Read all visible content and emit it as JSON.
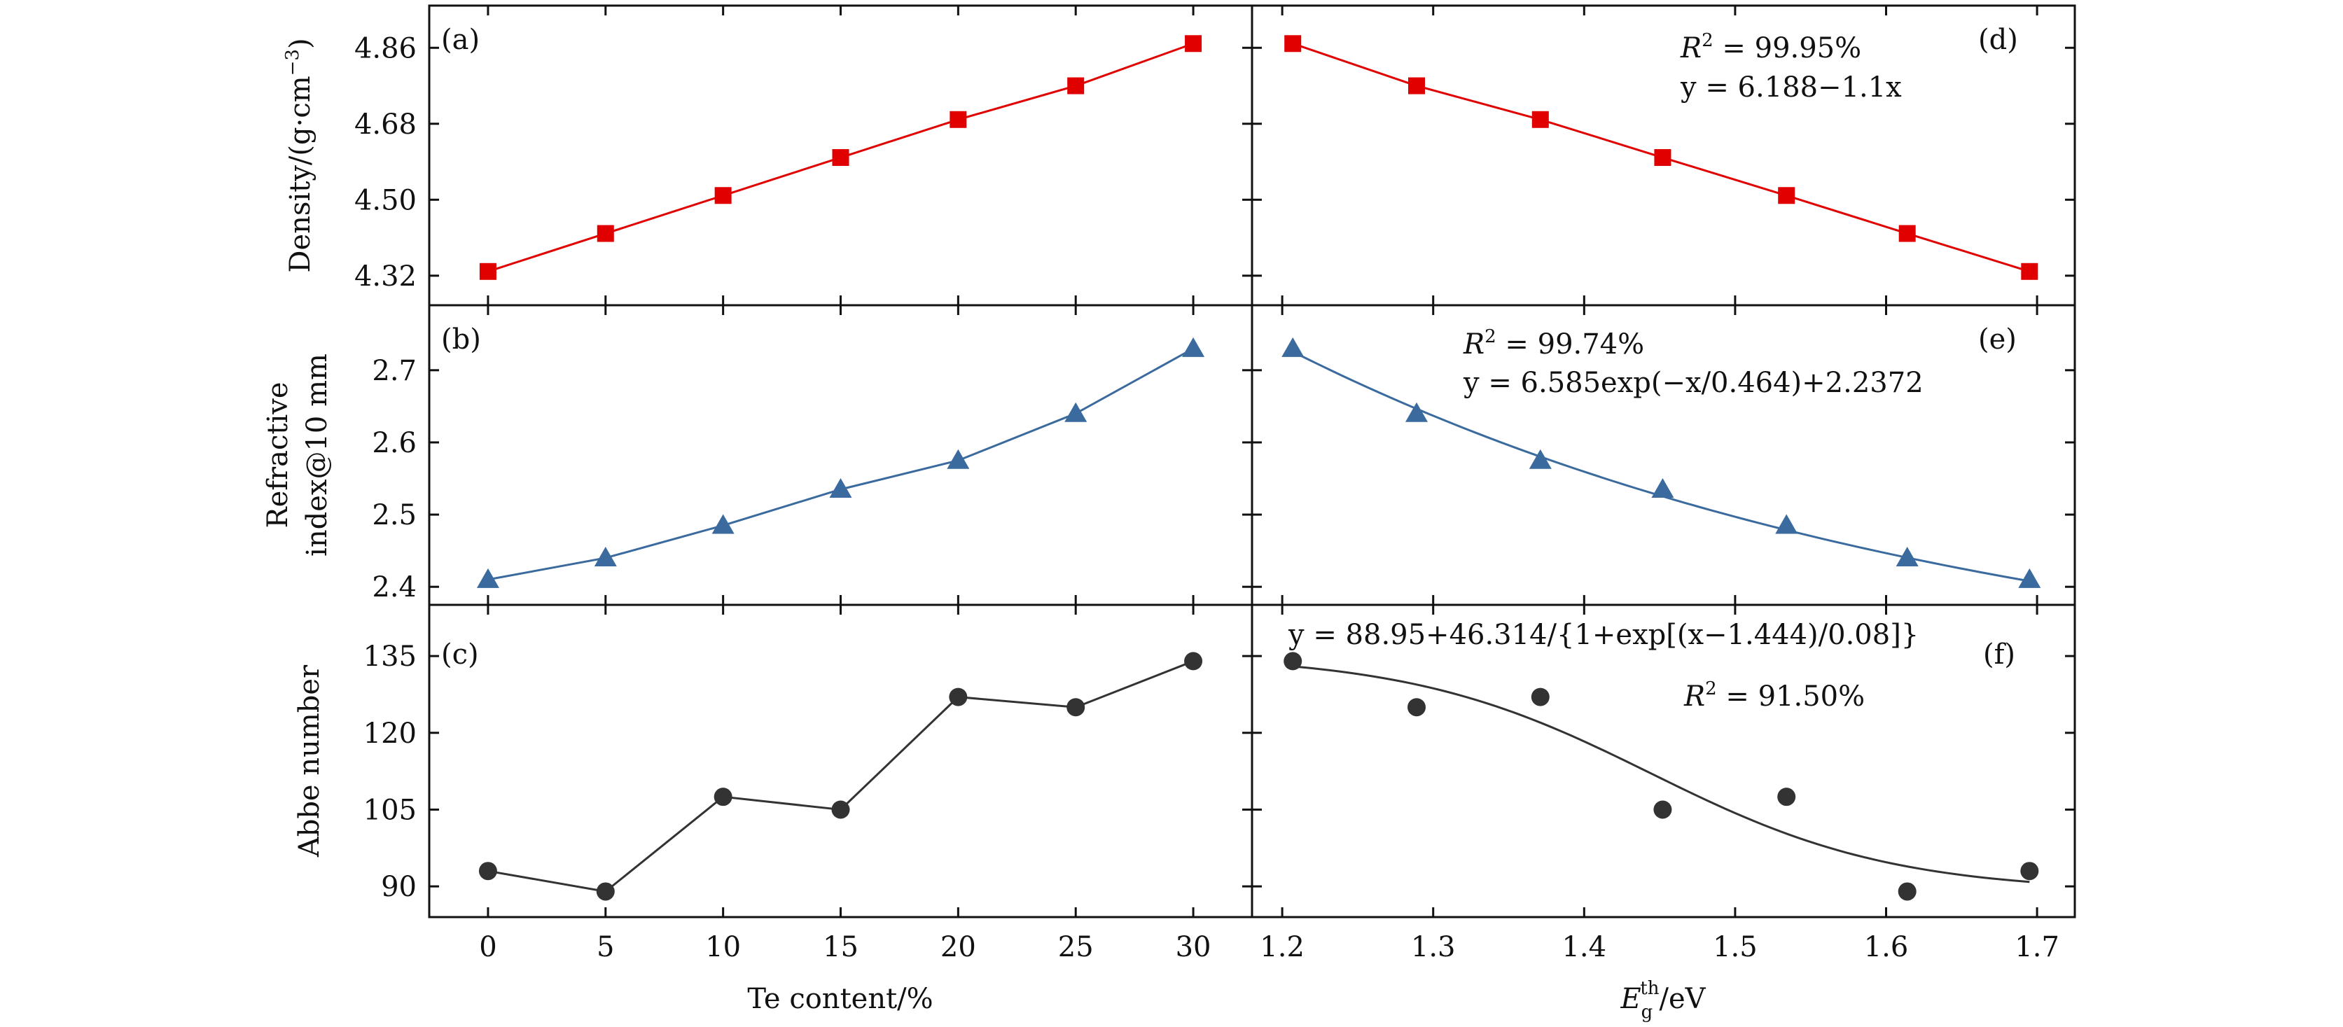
{
  "colors": {
    "red": "#e00000",
    "blue": "#3a6a9e",
    "dark": "#333333"
  },
  "x_te": {
    "ticks": [
      "0",
      "5",
      "10",
      "15",
      "20",
      "25",
      "30"
    ],
    "label": "Te content/%"
  },
  "x_eg": {
    "ticks": [
      "1.2",
      "1.3",
      "1.4",
      "1.5",
      "1.6",
      "1.7"
    ],
    "label_E": "E",
    "label_sub": "g",
    "label_sup": "th",
    "label_unit": "/eV"
  },
  "rows": [
    {
      "ylabel_lines": [
        "Density/(g·cm",
        "−3",
        ")"
      ],
      "ticks": [
        "4.32",
        "4.50",
        "4.68",
        "4.86"
      ]
    },
    {
      "ylabel_lines": [
        "Refractive",
        "index@10 mm"
      ],
      "ticks": [
        "2.4",
        "2.5",
        "2.6",
        "2.7"
      ]
    },
    {
      "ylabel_lines": [
        "Abbe number"
      ],
      "ticks": [
        "90",
        "105",
        "120",
        "135"
      ]
    }
  ],
  "panels": {
    "a": {
      "label": "(a)"
    },
    "b": {
      "label": "(b)"
    },
    "c": {
      "label": "(c)"
    },
    "d": {
      "label": "(d)",
      "r2": "R",
      "r2_sup": "2",
      "r2_val": " = 99.95%",
      "eq": "y = 6.188−1.1x"
    },
    "e": {
      "label": "(e)",
      "r2": "R",
      "r2_sup": "2",
      "r2_val": " = 99.74%",
      "eq": "y = 6.585exp(−x/0.464)+2.2372"
    },
    "f": {
      "label": "(f)",
      "r2": "R",
      "r2_sup": "2",
      "r2_val": " = 91.50%",
      "eq": "y = 88.95+46.314/{1+exp[(x−1.444)/0.08]}"
    }
  },
  "chart_data": [
    {
      "type": "line",
      "panel": "a",
      "marker": "square",
      "x": [
        0,
        5,
        10,
        15,
        20,
        25,
        30
      ],
      "y": [
        4.33,
        4.42,
        4.51,
        4.6,
        4.69,
        4.77,
        4.87
      ],
      "xlim": [
        -2.5,
        32.5
      ],
      "ylim": [
        4.25,
        4.96
      ],
      "ylabel": "Density/(g·cm−3)",
      "xlabel": "Te content/%"
    },
    {
      "type": "line",
      "panel": "b",
      "marker": "triangle",
      "x": [
        0,
        5,
        10,
        15,
        20,
        25,
        30
      ],
      "y": [
        2.41,
        2.44,
        2.485,
        2.535,
        2.575,
        2.64,
        2.73
      ],
      "xlim": [
        -2.5,
        32.5
      ],
      "ylim": [
        2.375,
        2.79
      ],
      "ylabel": "Refractive index@10 mm",
      "xlabel": "Te content/%"
    },
    {
      "type": "line",
      "panel": "c",
      "marker": "circle",
      "x": [
        0,
        5,
        10,
        15,
        20,
        25,
        30
      ],
      "y": [
        93,
        89,
        107.5,
        105,
        127,
        125,
        134
      ],
      "xlim": [
        -2.5,
        32.5
      ],
      "ylim": [
        84,
        145
      ],
      "ylabel": "Abbe number",
      "xlabel": "Te content/%"
    },
    {
      "type": "line",
      "panel": "d",
      "marker": "square",
      "fit": "linear",
      "x": [
        1.207,
        1.289,
        1.371,
        1.452,
        1.534,
        1.614,
        1.695
      ],
      "y": [
        4.87,
        4.77,
        4.69,
        4.6,
        4.51,
        4.42,
        4.33
      ],
      "xlim": [
        1.18,
        1.725
      ],
      "ylim": [
        4.25,
        4.96
      ],
      "fit_eq": "y = 6.188−1.1x",
      "r2": "99.95%",
      "xlabel": "Eg th/eV"
    },
    {
      "type": "line",
      "panel": "e",
      "marker": "triangle",
      "fit": "exp",
      "x": [
        1.207,
        1.289,
        1.371,
        1.452,
        1.534,
        1.614,
        1.695
      ],
      "y": [
        2.73,
        2.64,
        2.575,
        2.535,
        2.485,
        2.44,
        2.41
      ],
      "xlim": [
        1.18,
        1.725
      ],
      "ylim": [
        2.375,
        2.79
      ],
      "fit_eq": "y = 6.585exp(−x/0.464)+2.2372",
      "r2": "99.74%",
      "xlabel": "Eg th/eV"
    },
    {
      "type": "scatter",
      "panel": "f",
      "marker": "circle",
      "fit": "sigmoid",
      "x": [
        1.207,
        1.289,
        1.371,
        1.452,
        1.534,
        1.614,
        1.695
      ],
      "y": [
        134,
        125,
        127,
        105,
        107.5,
        89,
        93
      ],
      "xlim": [
        1.18,
        1.725
      ],
      "ylim": [
        84,
        145
      ],
      "fit_eq": "y = 88.95+46.314/{1+exp[(x−1.444)/0.08]}",
      "r2": "91.50%",
      "xlabel": "Eg th/eV"
    }
  ]
}
